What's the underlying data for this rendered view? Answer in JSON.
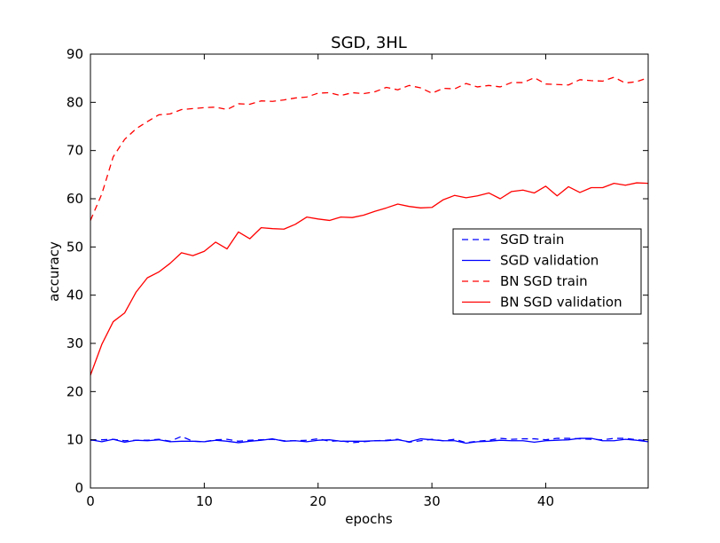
{
  "chart_data": {
    "type": "line",
    "title": "SGD, 3HL",
    "xlabel": "epochs",
    "ylabel": "accuracy",
    "xlim": [
      0,
      49
    ],
    "ylim": [
      0,
      90
    ],
    "xticks": [
      0,
      10,
      20,
      30,
      40
    ],
    "yticks": [
      0,
      10,
      20,
      30,
      40,
      50,
      60,
      70,
      80,
      90
    ],
    "grid": false,
    "legend_position": "center-right",
    "x": [
      0,
      1,
      2,
      3,
      4,
      5,
      6,
      7,
      8,
      9,
      10,
      11,
      12,
      13,
      14,
      15,
      16,
      17,
      18,
      19,
      20,
      21,
      22,
      23,
      24,
      25,
      26,
      27,
      28,
      29,
      30,
      31,
      32,
      33,
      34,
      35,
      36,
      37,
      38,
      39,
      40,
      41,
      42,
      43,
      44,
      45,
      46,
      47,
      48,
      49
    ],
    "series": [
      {
        "name": "SGD train",
        "color": "#0000ff",
        "style": "dashed",
        "values": [
          9.9,
          10.0,
          10.1,
          9.8,
          9.9,
          9.9,
          10.1,
          9.7,
          10.7,
          9.7,
          9.6,
          10.0,
          10.1,
          9.7,
          9.9,
          10.0,
          10.1,
          9.8,
          9.8,
          9.9,
          10.2,
          9.7,
          9.8,
          9.4,
          9.6,
          9.8,
          9.9,
          10.1,
          9.5,
          9.8,
          10.1,
          9.8,
          10.1,
          9.4,
          9.7,
          9.9,
          10.3,
          10.1,
          10.2,
          10.2,
          10.0,
          10.3,
          10.3,
          10.2,
          10.1,
          10.0,
          10.3,
          10.3,
          10.0,
          9.8
        ]
      },
      {
        "name": "SGD validation",
        "color": "#0000ff",
        "style": "solid",
        "values": [
          10.0,
          9.6,
          10.1,
          9.5,
          9.9,
          9.8,
          10.0,
          9.6,
          9.7,
          9.7,
          9.6,
          9.9,
          9.7,
          9.4,
          9.7,
          9.9,
          10.2,
          9.7,
          9.8,
          9.6,
          9.9,
          10.0,
          9.7,
          9.7,
          9.7,
          9.8,
          9.8,
          10.0,
          9.6,
          10.2,
          10.0,
          9.8,
          9.8,
          9.3,
          9.6,
          9.7,
          9.9,
          9.8,
          9.8,
          9.5,
          9.8,
          9.9,
          10.0,
          10.3,
          10.3,
          9.8,
          9.8,
          10.1,
          9.9,
          9.6
        ]
      },
      {
        "name": "BN SGD train",
        "color": "#ff0000",
        "style": "dashed",
        "values": [
          55.5,
          61.0,
          68.7,
          72.3,
          74.5,
          76.0,
          77.4,
          77.6,
          78.5,
          78.7,
          78.9,
          79.0,
          78.5,
          79.7,
          79.6,
          80.3,
          80.2,
          80.5,
          80.9,
          81.1,
          81.9,
          82.0,
          81.4,
          82.0,
          81.8,
          82.2,
          83.1,
          82.6,
          83.5,
          83.0,
          81.9,
          82.9,
          82.8,
          83.9,
          83.2,
          83.5,
          83.2,
          84.1,
          84.1,
          85.1,
          83.8,
          83.7,
          83.6,
          84.7,
          84.5,
          84.4,
          85.2,
          84.0,
          84.3,
          85.1
        ]
      },
      {
        "name": "BN SGD validation",
        "color": "#ff0000",
        "style": "solid",
        "values": [
          23.4,
          29.8,
          34.5,
          36.3,
          40.6,
          43.6,
          44.8,
          46.6,
          48.8,
          48.2,
          49.1,
          51.0,
          49.6,
          53.1,
          51.7,
          54.0,
          53.8,
          53.7,
          54.7,
          56.2,
          55.8,
          55.5,
          56.2,
          56.1,
          56.6,
          57.4,
          58.1,
          58.9,
          58.4,
          58.1,
          58.2,
          59.8,
          60.7,
          60.2,
          60.6,
          61.2,
          60.0,
          61.5,
          61.8,
          61.2,
          62.6,
          60.6,
          62.5,
          61.3,
          62.3,
          62.3,
          63.2,
          62.8,
          63.3,
          63.2
        ]
      }
    ]
  }
}
